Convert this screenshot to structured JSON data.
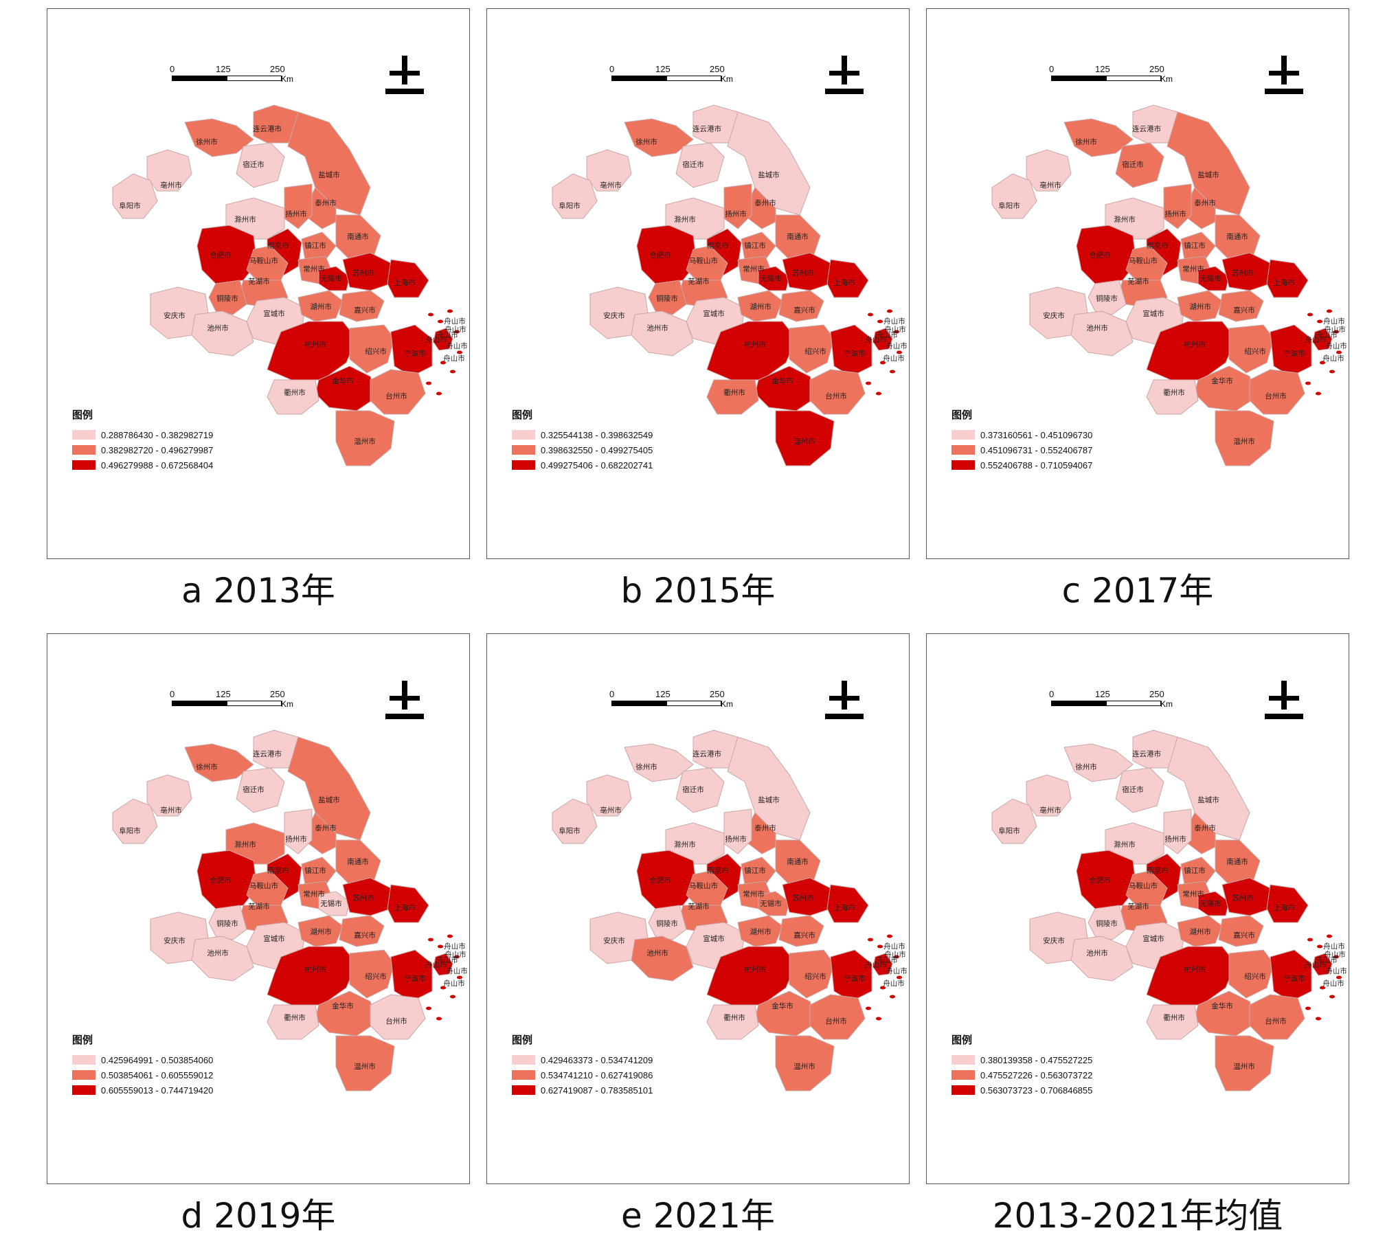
{
  "colors": {
    "low": "#f8cdcd",
    "mid": "#ee735c",
    "high": "#d20000"
  },
  "scale_bar": {
    "ticks": [
      "0",
      "125",
      "250"
    ],
    "unit": "Km"
  },
  "north_icon": "north-arrow-icon",
  "legend_title": "图例",
  "cities": [
    "连云港市",
    "徐州市",
    "宿迁市",
    "亳州市",
    "阜阳市",
    "盐城市",
    "泰州市",
    "扬州市",
    "滁州市",
    "南京市",
    "镇江市",
    "南通市",
    "合肥市",
    "马鞍山市",
    "常州市",
    "芜湖市",
    "无锡市",
    "苏州市",
    "上海市",
    "铜陵市",
    "宣城市",
    "湖州市",
    "嘉兴市",
    "安庆市",
    "池州市",
    "杭州市",
    "绍兴市",
    "宁波市",
    "舟山市",
    "金华市",
    "衢州市",
    "台州市",
    "温州市"
  ],
  "panels": [
    {
      "caption": "a 2013年",
      "legend": [
        "0.288786430 - 0.382982719",
        "0.382982720 - 0.496279987",
        "0.496279988 - 0.672568404"
      ],
      "levels": {
        "连云港市": 1,
        "徐州市": 1,
        "宿迁市": 0,
        "亳州市": 0,
        "阜阳市": 0,
        "盐城市": 1,
        "泰州市": 1,
        "扬州市": 1,
        "滁州市": 0,
        "南京市": 2,
        "镇江市": 1,
        "南通市": 1,
        "合肥市": 2,
        "马鞍山市": 1,
        "常州市": 1,
        "芜湖市": 1,
        "无锡市": 2,
        "苏州市": 2,
        "上海市": 2,
        "铜陵市": 1,
        "宣城市": 0,
        "湖州市": 1,
        "嘉兴市": 1,
        "安庆市": 0,
        "池州市": 0,
        "杭州市": 2,
        "绍兴市": 1,
        "宁波市": 2,
        "舟山市": 2,
        "金华市": 2,
        "衢州市": 0,
        "台州市": 1,
        "温州市": 1
      }
    },
    {
      "caption": "b 2015年",
      "legend": [
        "0.325544138 - 0.398632549",
        "0.398632550 - 0.499275405",
        "0.499275406 - 0.682202741"
      ],
      "levels": {
        "连云港市": 0,
        "徐州市": 1,
        "宿迁市": 0,
        "亳州市": 0,
        "阜阳市": 0,
        "盐城市": 0,
        "泰州市": 1,
        "扬州市": 1,
        "滁州市": 0,
        "南京市": 2,
        "镇江市": 1,
        "南通市": 1,
        "合肥市": 2,
        "马鞍山市": 1,
        "常州市": 1,
        "芜湖市": 1,
        "无锡市": 2,
        "苏州市": 2,
        "上海市": 2,
        "铜陵市": 1,
        "宣城市": 0,
        "湖州市": 1,
        "嘉兴市": 1,
        "安庆市": 0,
        "池州市": 0,
        "杭州市": 2,
        "绍兴市": 1,
        "宁波市": 2,
        "舟山市": 2,
        "金华市": 2,
        "衢州市": 1,
        "台州市": 1,
        "温州市": 2
      }
    },
    {
      "caption": "c 2017年",
      "legend": [
        "0.373160561 - 0.451096730",
        "0.451096731 - 0.552406787",
        "0.552406788 - 0.710594067"
      ],
      "levels": {
        "连云港市": 0,
        "徐州市": 1,
        "宿迁市": 1,
        "亳州市": 0,
        "阜阳市": 0,
        "盐城市": 1,
        "泰州市": 1,
        "扬州市": 1,
        "滁州市": 0,
        "南京市": 2,
        "镇江市": 1,
        "南通市": 1,
        "合肥市": 2,
        "马鞍山市": 1,
        "常州市": 1,
        "芜湖市": 1,
        "无锡市": 2,
        "苏州市": 2,
        "上海市": 2,
        "铜陵市": 0,
        "宣城市": 0,
        "湖州市": 1,
        "嘉兴市": 1,
        "安庆市": 0,
        "池州市": 0,
        "杭州市": 2,
        "绍兴市": 1,
        "宁波市": 2,
        "舟山市": 2,
        "金华市": 1,
        "衢州市": 0,
        "台州市": 1,
        "温州市": 1
      }
    },
    {
      "caption": "d 2019年",
      "legend": [
        "0.425964991 - 0.503854060",
        "0.503854061 - 0.605559012",
        "0.605559013 - 0.744719420"
      ],
      "levels": {
        "连云港市": 0,
        "徐州市": 1,
        "宿迁市": 0,
        "亳州市": 0,
        "阜阳市": 0,
        "盐城市": 1,
        "泰州市": 1,
        "扬州市": 0,
        "滁州市": 1,
        "南京市": 2,
        "镇江市": 1,
        "南通市": 1,
        "合肥市": 2,
        "马鞍山市": 1,
        "常州市": 1,
        "芜湖市": 1,
        "无锡市": 0,
        "苏州市": 2,
        "上海市": 2,
        "铜陵市": 0,
        "宣城市": 0,
        "湖州市": 1,
        "嘉兴市": 1,
        "安庆市": 0,
        "池州市": 0,
        "杭州市": 2,
        "绍兴市": 1,
        "宁波市": 2,
        "舟山市": 2,
        "金华市": 1,
        "衢州市": 0,
        "台州市": 0,
        "温州市": 1
      }
    },
    {
      "caption": "e 2021年",
      "legend": [
        "0.429463373 - 0.534741209",
        "0.534741210 - 0.627419086",
        "0.627419087 - 0.783585101"
      ],
      "levels": {
        "连云港市": 0,
        "徐州市": 0,
        "宿迁市": 0,
        "亳州市": 0,
        "阜阳市": 0,
        "盐城市": 0,
        "泰州市": 1,
        "扬州市": 0,
        "滁州市": 0,
        "南京市": 2,
        "镇江市": 1,
        "南通市": 1,
        "合肥市": 2,
        "马鞍山市": 1,
        "常州市": 1,
        "芜湖市": 1,
        "无锡市": 1,
        "苏州市": 2,
        "上海市": 2,
        "铜陵市": 0,
        "宣城市": 0,
        "湖州市": 1,
        "嘉兴市": 1,
        "安庆市": 0,
        "池州市": 1,
        "杭州市": 2,
        "绍兴市": 1,
        "宁波市": 2,
        "舟山市": 2,
        "金华市": 1,
        "衢州市": 0,
        "台州市": 1,
        "温州市": 1
      }
    },
    {
      "caption": "2013-2021年均值",
      "legend": [
        "0.380139358 - 0.475527225",
        "0.475527226 - 0.563073722",
        "0.563073723 - 0.706846855"
      ],
      "levels": {
        "连云港市": 0,
        "徐州市": 0,
        "宿迁市": 0,
        "亳州市": 0,
        "阜阳市": 0,
        "盐城市": 0,
        "泰州市": 1,
        "扬州市": 0,
        "滁州市": 0,
        "南京市": 2,
        "镇江市": 1,
        "南通市": 1,
        "合肥市": 2,
        "马鞍山市": 1,
        "常州市": 1,
        "芜湖市": 1,
        "无锡市": 2,
        "苏州市": 2,
        "上海市": 2,
        "铜陵市": 0,
        "宣城市": 0,
        "湖州市": 1,
        "嘉兴市": 1,
        "安庆市": 0,
        "池州市": 0,
        "杭州市": 2,
        "绍兴市": 1,
        "宁波市": 2,
        "舟山市": 2,
        "金华市": 1,
        "衢州市": 0,
        "台州市": 1,
        "温州市": 1
      }
    }
  ]
}
